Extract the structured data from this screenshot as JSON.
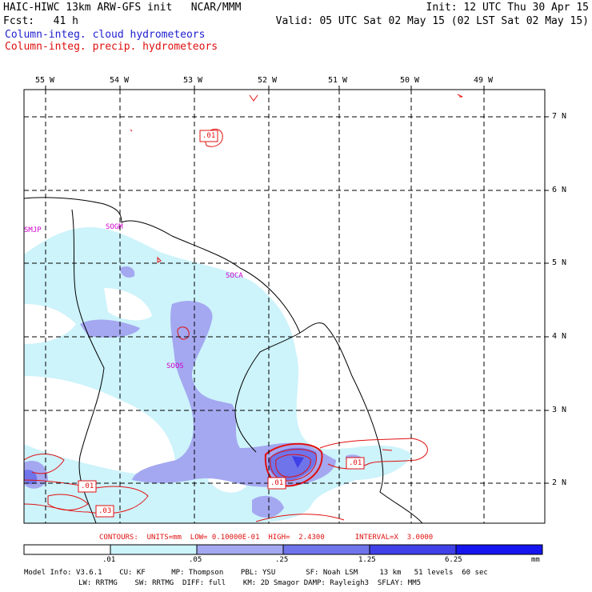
{
  "header": {
    "title_left": "HAIC-HIWC 13km ARW-GFS init   NCAR/MMM",
    "fcst": "Fcst:   41 h",
    "init": "Init: 12 UTC Thu 30 Apr 15",
    "valid": "Valid: 05 UTC Sat 02 May 15 (02 LST Sat 02 May 15)",
    "legend_cloud": "Column-integ. cloud hydrometeors",
    "legend_precip": "Column-integ. precip. hydrometeors"
  },
  "map": {
    "lon_labels": [
      "55 W",
      "54 W",
      "53 W",
      "52 W",
      "51 W",
      "50 W",
      "49 W"
    ],
    "lat_labels": [
      "7 N",
      "6 N",
      "5 N",
      "4 N",
      "3 N",
      "2 N"
    ],
    "stations": [
      "SMJP",
      "SOGM",
      "SOCA",
      "SOOS"
    ],
    "contour_labels": [
      ".01",
      ".01",
      ".01",
      ".01",
      ".03"
    ],
    "colors": {
      "cloud_light": "#cdf3fb",
      "cloud_mid": "#a4a8f0",
      "cloud_dark": "#6f74ea",
      "precip": "#e01010",
      "station": "#d000d0",
      "grid": "#000000"
    }
  },
  "contours_info": "CONTOURS:  UNITS=mm  LOW= 0.10000E-01  HIGH=  2.4300       INTERVAL=X  3.0000",
  "colorbar": {
    "ticks": [
      ".01",
      ".05",
      ".25",
      "1.25",
      "6.25"
    ],
    "unit": "mm",
    "colors": [
      "#ffffff",
      "#cdf3fb",
      "#a4a8f0",
      "#6f74ea",
      "#4040e8",
      "#1515f0"
    ]
  },
  "model_info": {
    "line1": "Model Info: V3.6.1    CU: KF      MP: Thompson    PBL: YSU       SF: Noah LSM     13 km   51 levels  60 sec",
    "line2": "LW: RRTMG    SW: RRTMG  DIFF: full    KM: 2D Smagor DAMP: Rayleigh3  SFLAY: MM5"
  }
}
